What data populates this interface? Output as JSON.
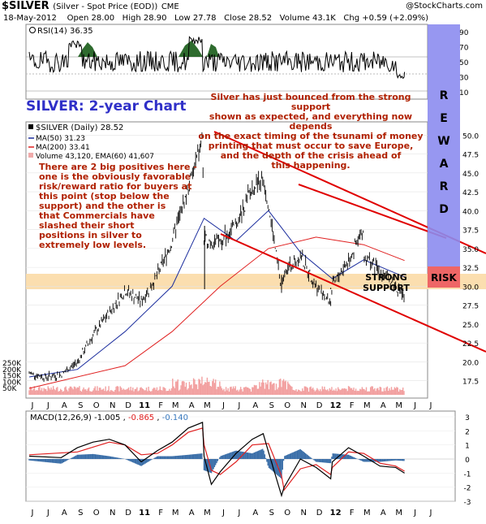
{
  "header": {
    "symbol": "$SILVER",
    "name": "(Silver - Spot Price (EOD))",
    "exchange": "CME",
    "source": "@StockCharts.com",
    "date": "18-May-2012",
    "open": "Open 28.00",
    "high": "High 28.90",
    "low": "Low 27.78",
    "close": "Close 28.52",
    "volume": "Volume 43.1K",
    "chg": "Chg +0.59 (+2.09%)"
  },
  "rsi": {
    "legend": "RSI(14) 36.35",
    "ticks": [
      "90",
      "70",
      "50",
      "30",
      "10"
    ]
  },
  "main": {
    "title": "SILVER: 2-year Chart",
    "legend": {
      "price": "$SILVER (Daily) 28.52",
      "ma50": "MA(50) 31.23",
      "ma200": "MA(200) 33.41",
      "volume": "Volume 43,120, EMA(60) 41,607"
    },
    "price_ticks": [
      "50.0",
      "47.5",
      "45.0",
      "42.5",
      "40.0",
      "37.5",
      "35.0",
      "32.5",
      "30.0",
      "27.5",
      "25.0",
      "22.5",
      "20.0",
      "17.5"
    ],
    "volume_ticks": [
      "250K",
      "200K",
      "150K",
      "100K",
      "50K"
    ],
    "support_label_1": "STRONG",
    "support_label_2": "SUPPORT",
    "risk_label": "RISK",
    "reward_letters": [
      "R",
      "E",
      "W",
      "A",
      "R",
      "D"
    ]
  },
  "annotations": {
    "right_text": [
      "Silver has just bounced from the strong support",
      "shown as expected, and everything now depends",
      "on the exact timing of the tsunami of money",
      "printing that must occur to save Europe,",
      "and the depth of the crisis ahead of",
      "this happening."
    ],
    "left_text": [
      "There are 2 big positives here -",
      "one is the obviously favorable",
      "risk/reward ratio for buyers at",
      "this point (stop below the",
      "support) and the other is",
      "that Commercials have",
      "slashed their short",
      "positions in silver to",
      "extremely low levels."
    ]
  },
  "macd": {
    "legend_prefix": "MACD(12,26,9)",
    "macd_val": "-1.005",
    "signal_val": "-0.865",
    "hist_val": "-0.140",
    "ticks": [
      "3",
      "2",
      "1",
      "0",
      "-1",
      "-2",
      "-3"
    ]
  },
  "months": [
    "J",
    "J",
    "A",
    "S",
    "O",
    "N",
    "D",
    "11",
    "F",
    "M",
    "A",
    "M",
    "J",
    "J",
    "A",
    "S",
    "O",
    "N",
    "D",
    "12",
    "F",
    "M",
    "A",
    "M",
    "J",
    "J"
  ],
  "chart_data": {
    "type": "line",
    "title": "SILVER: 2-year Chart",
    "symbol": "$SILVER",
    "x_range": [
      "Jun 2010",
      "Jul 2012"
    ],
    "ylim": [
      16.5,
      51
    ],
    "price_series": {
      "name": "$SILVER (Daily)",
      "x": [
        "2010-06",
        "2010-07",
        "2010-08",
        "2010-09",
        "2010-10",
        "2010-11",
        "2010-12",
        "2011-01",
        "2011-02",
        "2011-03",
        "2011-04",
        "2011-04-28",
        "2011-05",
        "2011-06",
        "2011-07",
        "2011-08",
        "2011-08-22",
        "2011-09",
        "2011-09-26",
        "2011-10",
        "2011-11",
        "2011-12",
        "2011-12-29",
        "2012-01",
        "2012-02",
        "2012-02-29",
        "2012-03",
        "2012-04",
        "2012-05",
        "2012-05-18"
      ],
      "values": [
        18.5,
        18.0,
        18.3,
        20.0,
        23.5,
        26.5,
        29.5,
        28.0,
        31.5,
        36.0,
        43.0,
        49.5,
        36.0,
        36.0,
        38.0,
        43.0,
        44.0,
        41.0,
        29.5,
        32.0,
        34.0,
        30.0,
        27.8,
        30.0,
        33.5,
        37.2,
        34.0,
        32.0,
        30.0,
        28.52
      ]
    },
    "ma50": {
      "name": "MA(50)",
      "x": [
        "2010-06",
        "2010-09",
        "2010-12",
        "2011-03",
        "2011-05",
        "2011-07",
        "2011-09",
        "2011-11",
        "2012-01",
        "2012-03",
        "2012-05-18"
      ],
      "values": [
        18.0,
        19.0,
        24.0,
        30.0,
        39.0,
        36.0,
        40.0,
        34.5,
        31.0,
        33.5,
        31.23
      ]
    },
    "ma200": {
      "name": "MA(200)",
      "x": [
        "2010-06",
        "2010-12",
        "2011-03",
        "2011-06",
        "2011-09",
        "2011-12",
        "2012-03",
        "2012-05-18"
      ],
      "values": [
        16.5,
        19.5,
        24.0,
        30.0,
        35.0,
        36.5,
        35.5,
        33.41
      ]
    },
    "support_band": [
      26.6,
      28.4
    ],
    "rsi_range": [
      0,
      100
    ],
    "rsi_last": 36.35,
    "macd_last": -1.005,
    "signal_last": -0.865,
    "histogram_last": -0.14,
    "volume_last": 43120,
    "volume_ema60": 41607
  }
}
